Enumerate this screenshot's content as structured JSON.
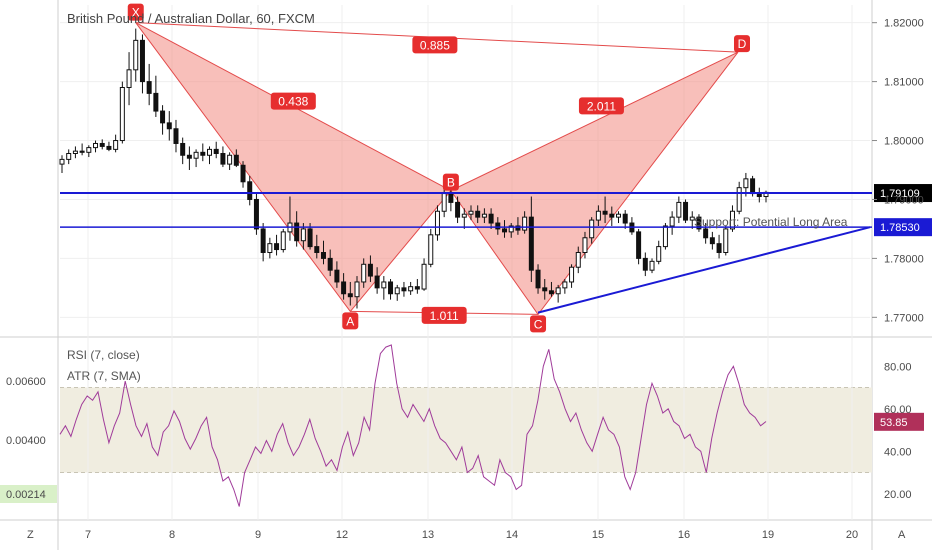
{
  "chart_data": [
    {
      "type": "candlestick",
      "title": "British Pound / Australian Dollar, 60, FXCM",
      "x_tick_labels": [
        "7",
        "8",
        "9",
        "12",
        "13",
        "14",
        "15",
        "16",
        "19",
        "20"
      ],
      "y_tick_labels": [
        "1.82000",
        "1.81000",
        "1.80000",
        "1.79000",
        "1.78000",
        "1.77000"
      ],
      "ylim": [
        1.767,
        1.823
      ],
      "candles": [
        [
          1.796,
          1.7975,
          1.7945,
          1.7968
        ],
        [
          1.7968,
          1.7985,
          1.796,
          1.7978
        ],
        [
          1.7978,
          1.799,
          1.797,
          1.7982
        ],
        [
          1.7982,
          1.7995,
          1.7975,
          1.798
        ],
        [
          1.798,
          1.7992,
          1.7972,
          1.7988
        ],
        [
          1.7988,
          1.8,
          1.798,
          1.7995
        ],
        [
          1.7995,
          1.8002,
          1.7985,
          1.799
        ],
        [
          1.799,
          1.7998,
          1.7982,
          1.7985
        ],
        [
          1.7985,
          1.801,
          1.798,
          1.8
        ],
        [
          1.8,
          1.81,
          1.7995,
          1.809
        ],
        [
          1.809,
          1.815,
          1.806,
          1.812
        ],
        [
          1.812,
          1.819,
          1.81,
          1.817
        ],
        [
          1.817,
          1.818,
          1.808,
          1.81
        ],
        [
          1.81,
          1.813,
          1.806,
          1.808
        ],
        [
          1.808,
          1.811,
          1.804,
          1.805
        ],
        [
          1.805,
          1.806,
          1.801,
          1.803
        ],
        [
          1.803,
          1.805,
          1.8,
          1.802
        ],
        [
          1.802,
          1.8035,
          1.798,
          1.7995
        ],
        [
          1.7995,
          1.8005,
          1.796,
          1.7975
        ],
        [
          1.7975,
          1.799,
          1.795,
          1.797
        ],
        [
          1.797,
          1.7985,
          1.7955,
          1.798
        ],
        [
          1.798,
          1.7995,
          1.7965,
          1.7975
        ],
        [
          1.7975,
          1.799,
          1.796,
          1.7985
        ],
        [
          1.7985,
          1.7998,
          1.797,
          1.7978
        ],
        [
          1.7978,
          1.799,
          1.7955,
          1.796
        ],
        [
          1.796,
          1.798,
          1.795,
          1.7975
        ],
        [
          1.7975,
          1.7985,
          1.7955,
          1.7958
        ],
        [
          1.7958,
          1.7965,
          1.792,
          1.793
        ],
        [
          1.793,
          1.794,
          1.789,
          1.79
        ],
        [
          1.79,
          1.791,
          1.784,
          1.785
        ],
        [
          1.785,
          1.786,
          1.7795,
          1.781
        ],
        [
          1.781,
          1.7835,
          1.78,
          1.7825
        ],
        [
          1.7825,
          1.784,
          1.7805,
          1.7815
        ],
        [
          1.7815,
          1.785,
          1.781,
          1.7845
        ],
        [
          1.7845,
          1.7905,
          1.783,
          1.786
        ],
        [
          1.786,
          1.788,
          1.782,
          1.783
        ],
        [
          1.783,
          1.786,
          1.7815,
          1.785
        ],
        [
          1.785,
          1.786,
          1.7815,
          1.782
        ],
        [
          1.782,
          1.784,
          1.78,
          1.781
        ],
        [
          1.781,
          1.783,
          1.779,
          1.78
        ],
        [
          1.78,
          1.7815,
          1.777,
          1.778
        ],
        [
          1.778,
          1.7795,
          1.775,
          1.776
        ],
        [
          1.776,
          1.7775,
          1.773,
          1.774
        ],
        [
          1.774,
          1.776,
          1.772,
          1.7735
        ],
        [
          1.7735,
          1.777,
          1.7715,
          1.776
        ],
        [
          1.776,
          1.78,
          1.775,
          1.779
        ],
        [
          1.779,
          1.7805,
          1.776,
          1.777
        ],
        [
          1.777,
          1.7785,
          1.774,
          1.775
        ],
        [
          1.775,
          1.777,
          1.773,
          1.776
        ],
        [
          1.776,
          1.7765,
          1.773,
          1.774
        ],
        [
          1.774,
          1.7755,
          1.7728,
          1.775
        ],
        [
          1.775,
          1.776,
          1.7735,
          1.7745
        ],
        [
          1.7745,
          1.776,
          1.7738,
          1.7752
        ],
        [
          1.7752,
          1.7765,
          1.774,
          1.7748
        ],
        [
          1.7748,
          1.78,
          1.7745,
          1.779
        ],
        [
          1.779,
          1.785,
          1.7785,
          1.784
        ],
        [
          1.784,
          1.789,
          1.783,
          1.788
        ],
        [
          1.788,
          1.792,
          1.787,
          1.791
        ],
        [
          1.791,
          1.7918,
          1.788,
          1.7895
        ],
        [
          1.7895,
          1.7905,
          1.786,
          1.787
        ],
        [
          1.787,
          1.7885,
          1.785,
          1.7875
        ],
        [
          1.7875,
          1.789,
          1.7865,
          1.788
        ],
        [
          1.788,
          1.789,
          1.786,
          1.787
        ],
        [
          1.787,
          1.7885,
          1.786,
          1.7875
        ],
        [
          1.7875,
          1.7885,
          1.785,
          1.786
        ],
        [
          1.786,
          1.787,
          1.784,
          1.785
        ],
        [
          1.785,
          1.7865,
          1.7835,
          1.7845
        ],
        [
          1.7845,
          1.786,
          1.7835,
          1.7855
        ],
        [
          1.7855,
          1.787,
          1.784,
          1.7848
        ],
        [
          1.7848,
          1.788,
          1.7842,
          1.787
        ],
        [
          1.787,
          1.7905,
          1.776,
          1.778
        ],
        [
          1.778,
          1.779,
          1.774,
          1.775
        ],
        [
          1.775,
          1.7765,
          1.773,
          1.7745
        ],
        [
          1.7745,
          1.776,
          1.7735,
          1.774
        ],
        [
          1.774,
          1.7755,
          1.7725,
          1.775
        ],
        [
          1.775,
          1.7765,
          1.774,
          1.776
        ],
        [
          1.776,
          1.779,
          1.775,
          1.7785
        ],
        [
          1.7785,
          1.782,
          1.7775,
          1.781
        ],
        [
          1.781,
          1.7845,
          1.78,
          1.7835
        ],
        [
          1.7835,
          1.787,
          1.7825,
          1.7865
        ],
        [
          1.7865,
          1.789,
          1.7855,
          1.788
        ],
        [
          1.788,
          1.7905,
          1.786,
          1.7875
        ],
        [
          1.7875,
          1.7888,
          1.7855,
          1.787
        ],
        [
          1.787,
          1.788,
          1.786,
          1.7875
        ],
        [
          1.7875,
          1.7882,
          1.785,
          1.786
        ],
        [
          1.786,
          1.787,
          1.784,
          1.7845
        ],
        [
          1.7845,
          1.785,
          1.779,
          1.78
        ],
        [
          1.78,
          1.781,
          1.777,
          1.778
        ],
        [
          1.778,
          1.78,
          1.7775,
          1.7795
        ],
        [
          1.7795,
          1.783,
          1.779,
          1.782
        ],
        [
          1.782,
          1.786,
          1.7815,
          1.7855
        ],
        [
          1.7855,
          1.788,
          1.784,
          1.787
        ],
        [
          1.787,
          1.7905,
          1.786,
          1.7895
        ],
        [
          1.7895,
          1.79,
          1.786,
          1.7865
        ],
        [
          1.7865,
          1.788,
          1.785,
          1.787
        ],
        [
          1.787,
          1.7875,
          1.7845,
          1.785
        ],
        [
          1.785,
          1.786,
          1.7825,
          1.7835
        ],
        [
          1.7835,
          1.7845,
          1.7815,
          1.7825
        ],
        [
          1.7825,
          1.784,
          1.78,
          1.781
        ],
        [
          1.781,
          1.7855,
          1.7805,
          1.785
        ],
        [
          1.785,
          1.789,
          1.7845,
          1.788
        ],
        [
          1.788,
          1.793,
          1.7875,
          1.792
        ],
        [
          1.792,
          1.7945,
          1.7905,
          1.7935
        ],
        [
          1.7935,
          1.794,
          1.7905,
          1.791
        ],
        [
          1.791,
          1.792,
          1.7895,
          1.7905
        ],
        [
          1.7905,
          1.7915,
          1.7895,
          1.7912
        ]
      ],
      "horizontal_lines": [
        1.79109,
        1.7853
      ],
      "trendline": [
        [
          1.7708,
          0.0
        ],
        [
          1.7853,
          1.0
        ]
      ],
      "harmonic_pattern": {
        "points": [
          {
            "name": "X",
            "price": 1.82
          },
          {
            "name": "A",
            "price": 1.771
          },
          {
            "name": "B",
            "price": 1.7915
          },
          {
            "name": "C",
            "price": 1.7705
          },
          {
            "name": "D",
            "price": 1.815
          }
        ],
        "ratios": [
          "0.885",
          "0.438",
          "2.011",
          "1.011"
        ]
      },
      "annotation": "Support: Potential Long Area",
      "last_prices": [
        "1.79109",
        "1.78530"
      ],
      "colors": {
        "up": "#111111",
        "down": "#111111",
        "pattern_line": "#e34b4b",
        "pattern_fill": "#f28b82",
        "level": "#1a1ad4",
        "badge_red": "#e62e2e"
      }
    },
    {
      "type": "line",
      "series": [
        {
          "name": "RSI (7, close)",
          "last": "53.85",
          "color": "#a03c9a"
        },
        {
          "name": "ATR (7, SMA)",
          "last": "0.00214",
          "color": "#a03c9a"
        }
      ],
      "rsi_values": [
        48,
        52,
        47,
        55,
        62,
        66,
        64,
        68,
        55,
        44,
        52,
        58,
        73,
        62,
        52,
        47,
        53,
        42,
        38,
        49,
        52,
        59,
        54,
        46,
        41,
        46,
        52,
        56,
        42,
        36,
        26,
        28,
        22,
        14,
        30,
        36,
        42,
        39,
        45,
        40,
        48,
        53,
        44,
        38,
        42,
        48,
        55,
        46,
        40,
        33,
        36,
        31,
        42,
        49,
        38,
        44,
        56,
        50,
        72,
        86,
        89,
        90,
        72,
        60,
        56,
        62,
        58,
        54,
        60,
        52,
        46,
        44,
        40,
        36,
        42,
        30,
        32,
        38,
        28,
        26,
        24,
        36,
        30,
        28,
        22,
        24,
        48,
        52,
        64,
        80,
        88,
        74,
        68,
        60,
        54,
        58,
        50,
        44,
        40,
        48,
        56,
        50,
        48,
        42,
        28,
        22,
        30,
        46,
        62,
        72,
        66,
        58,
        60,
        54,
        52,
        46,
        48,
        42,
        40,
        30,
        46,
        58,
        68,
        76,
        80,
        72,
        62,
        58,
        56,
        52,
        54
      ],
      "rsi_y_ticks": [
        "80.00",
        "60.00",
        "40.00",
        "20.00"
      ],
      "rsi_band": [
        30,
        70
      ],
      "atr_y_ticks": [
        "0.00600",
        "0.00400",
        "0.00214"
      ],
      "colors": {
        "band": "#f0ede0",
        "line": "#a03c9a",
        "atr_badge": "#d9f0c8",
        "rsi_badge": "#b0305a"
      }
    }
  ],
  "axis_corners": {
    "left": "Z",
    "right": "A"
  }
}
